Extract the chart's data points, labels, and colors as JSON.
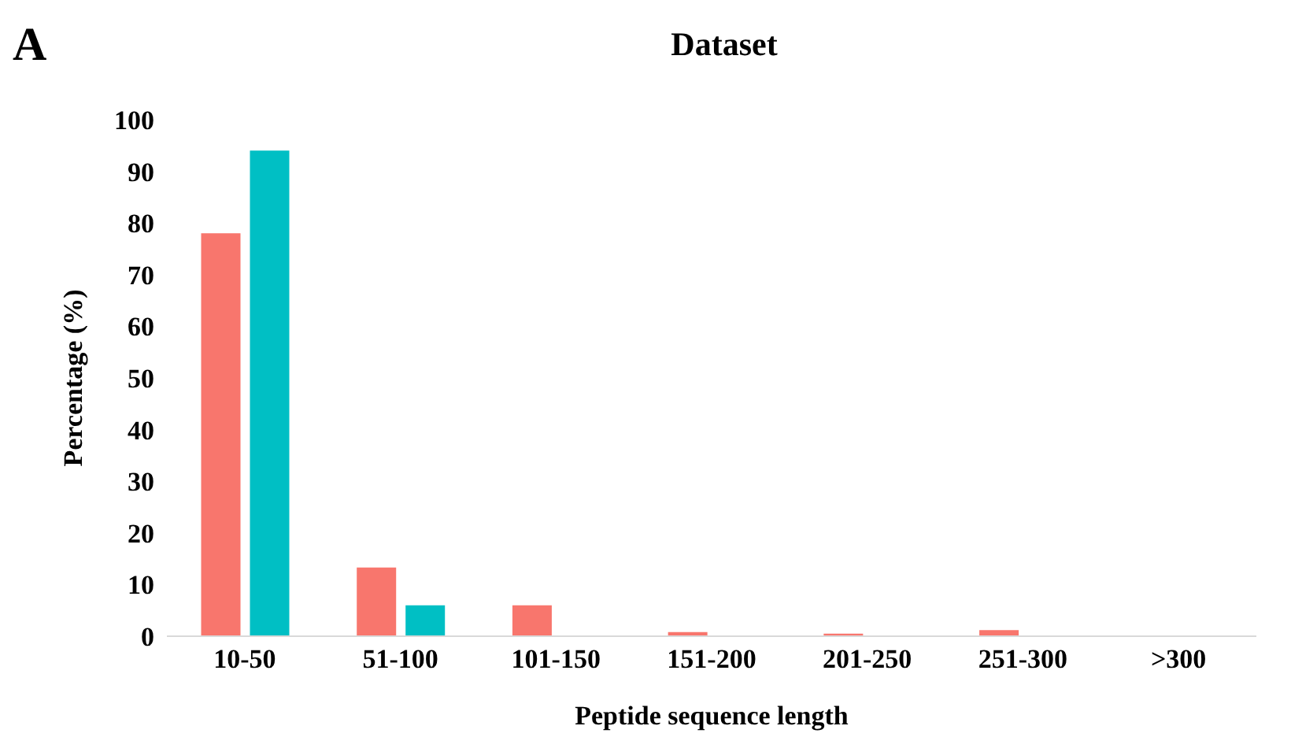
{
  "chart_data": {
    "type": "bar",
    "title": "Dataset",
    "annotations": [
      "A"
    ],
    "xlabel": "Peptide sequence length",
    "ylabel": "Percentage (%)",
    "categories": [
      "10-50",
      "51-100",
      "101-150",
      "151-200",
      "201-250",
      "251-300",
      ">300"
    ],
    "series": [
      {
        "color": "#f8766d",
        "values": [
          78,
          13.3,
          6,
          0.8,
          0.5,
          1.2,
          0
        ]
      },
      {
        "color": "#00bfc4",
        "values": [
          94,
          6,
          0,
          0,
          0,
          0,
          0
        ]
      }
    ],
    "ylim": [
      0,
      100
    ],
    "yticks": [
      0,
      10,
      20,
      30,
      40,
      50,
      60,
      70,
      80,
      90,
      100
    ],
    "grid": false,
    "legend": false
  }
}
